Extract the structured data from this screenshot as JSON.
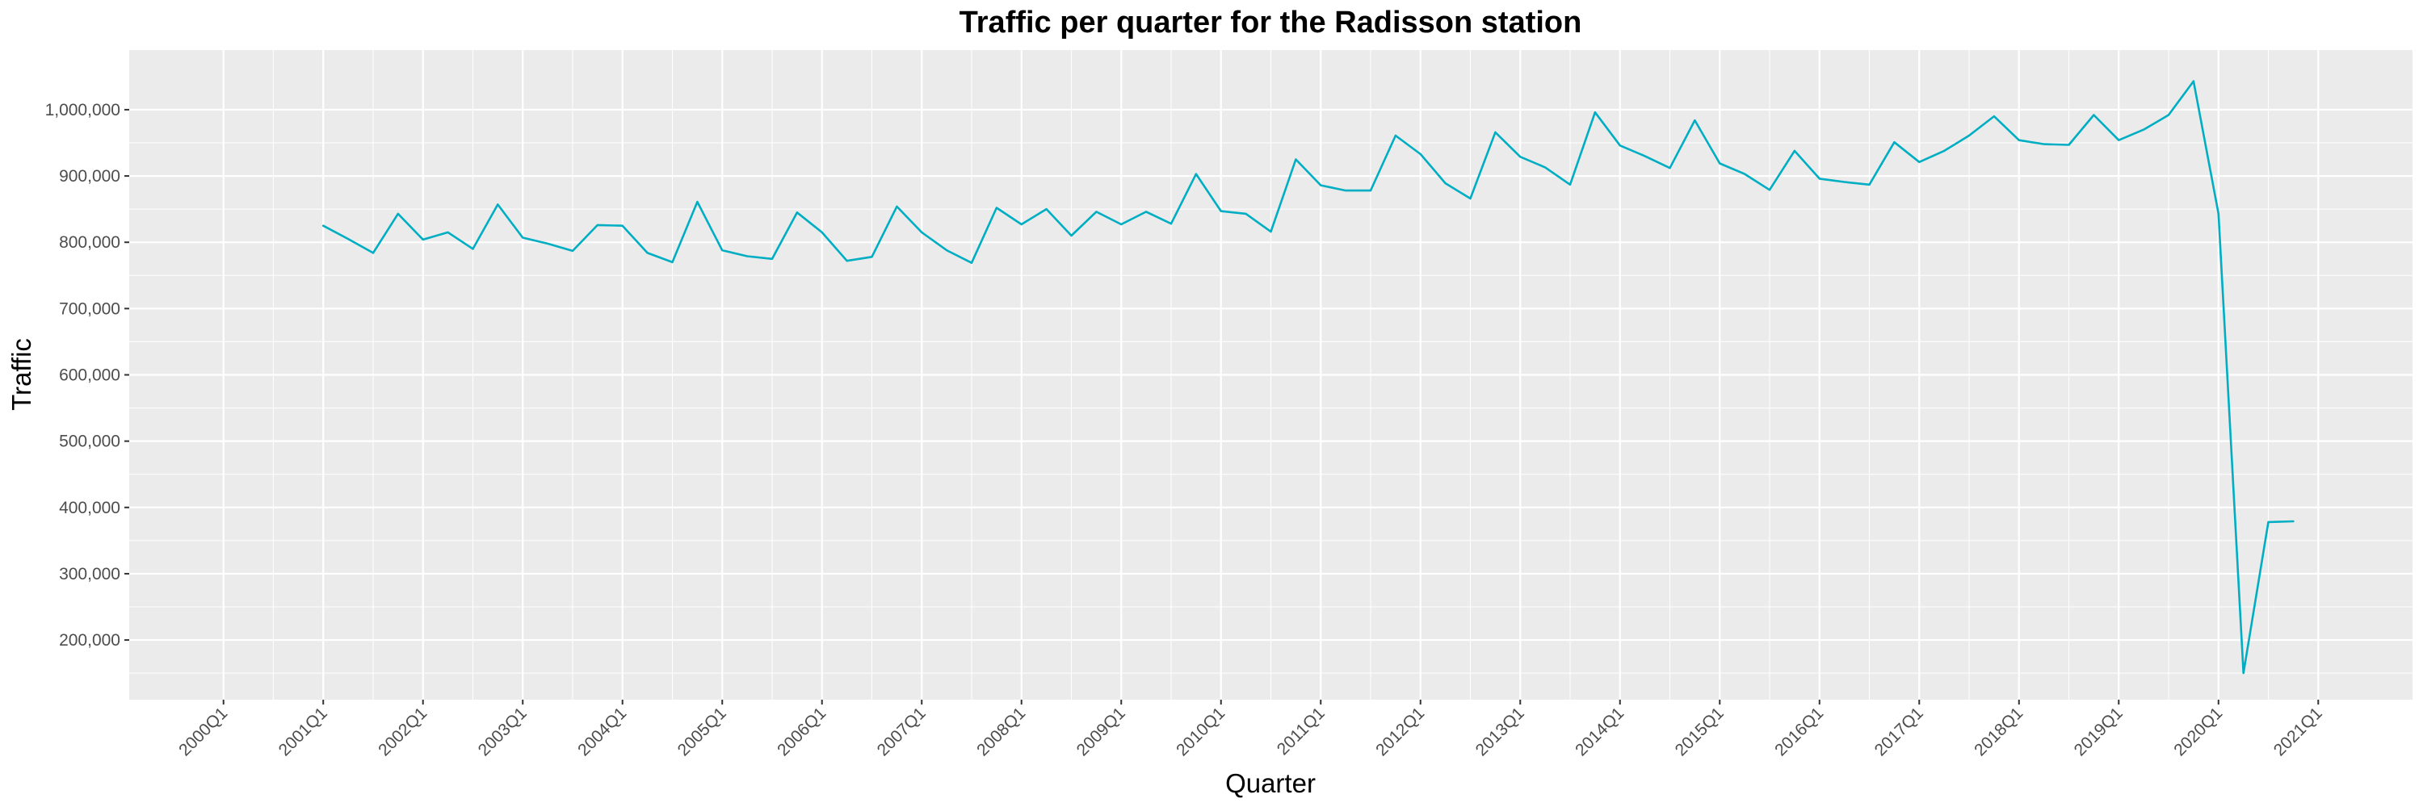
{
  "chart_data": {
    "type": "line",
    "title": "Traffic per quarter for the Radisson station",
    "xlabel": "Quarter",
    "ylabel": "Traffic",
    "x_ticks": [
      "2000Q1",
      "2001Q1",
      "2002Q1",
      "2003Q1",
      "2004Q1",
      "2005Q1",
      "2006Q1",
      "2007Q1",
      "2008Q1",
      "2009Q1",
      "2010Q1",
      "2011Q1",
      "2012Q1",
      "2013Q1",
      "2014Q1",
      "2015Q1",
      "2016Q1",
      "2017Q1",
      "2018Q1",
      "2019Q1",
      "2020Q1",
      "2021Q1"
    ],
    "y_ticks": [
      200000,
      300000,
      400000,
      500000,
      600000,
      700000,
      800000,
      900000,
      1000000
    ],
    "y_tick_labels": [
      "200,000",
      "300,000",
      "400,000",
      "500,000",
      "600,000",
      "700,000",
      "800,000",
      "900,000",
      "1,000,000"
    ],
    "xlim": [
      "2000Q1",
      "2021Q1"
    ],
    "ylim": [
      110000,
      1090000
    ],
    "grid": true,
    "series_color": "#00aec3",
    "panel_color": "#ebebeb",
    "series": [
      {
        "x": [
          "2001Q1",
          "2001Q2",
          "2001Q3",
          "2001Q4",
          "2002Q1",
          "2002Q2",
          "2002Q3",
          "2002Q4",
          "2003Q1",
          "2003Q2",
          "2003Q3",
          "2003Q4",
          "2004Q1",
          "2004Q2",
          "2004Q3",
          "2004Q4",
          "2005Q1",
          "2005Q2",
          "2005Q3",
          "2005Q4",
          "2006Q1",
          "2006Q2",
          "2006Q3",
          "2006Q4",
          "2007Q1",
          "2007Q2",
          "2007Q3",
          "2007Q4",
          "2008Q1",
          "2008Q2",
          "2008Q3",
          "2008Q4",
          "2009Q1",
          "2009Q2",
          "2009Q3",
          "2009Q4",
          "2010Q1",
          "2010Q2",
          "2010Q3",
          "2010Q4",
          "2011Q1",
          "2011Q2",
          "2011Q3",
          "2011Q4",
          "2012Q1",
          "2012Q2",
          "2012Q3",
          "2012Q4",
          "2013Q1",
          "2013Q2",
          "2013Q3",
          "2013Q4",
          "2014Q1",
          "2014Q2",
          "2014Q3",
          "2014Q4",
          "2015Q1",
          "2015Q2",
          "2015Q3",
          "2015Q4",
          "2016Q1",
          "2016Q2",
          "2016Q3",
          "2016Q4",
          "2017Q1",
          "2017Q2",
          "2017Q3",
          "2017Q4",
          "2018Q1",
          "2018Q2",
          "2018Q3",
          "2018Q4",
          "2019Q1",
          "2019Q2",
          "2019Q3",
          "2019Q4",
          "2020Q1",
          "2020Q2",
          "2020Q3",
          "2020Q4"
        ],
        "values": [
          825000,
          805000,
          784000,
          843000,
          804000,
          815000,
          790000,
          857000,
          807000,
          798000,
          787000,
          826000,
          825000,
          784000,
          770000,
          861000,
          788000,
          779000,
          775000,
          845000,
          815000,
          772000,
          778000,
          854000,
          815000,
          788000,
          769000,
          852000,
          827000,
          850000,
          810000,
          846000,
          827000,
          846000,
          828000,
          903000,
          847000,
          843000,
          816000,
          925000,
          886000,
          878000,
          878000,
          961000,
          933000,
          889000,
          866000,
          966000,
          929000,
          913000,
          887000,
          996000,
          946000,
          930000,
          912000,
          984000,
          919000,
          903000,
          879000,
          938000,
          896000,
          891000,
          887000,
          951000,
          921000,
          938000,
          961000,
          990000,
          954000,
          948000,
          947000,
          992000,
          954000,
          970000,
          992000,
          1043000,
          843000,
          150000,
          378000,
          379000
        ]
      }
    ]
  }
}
